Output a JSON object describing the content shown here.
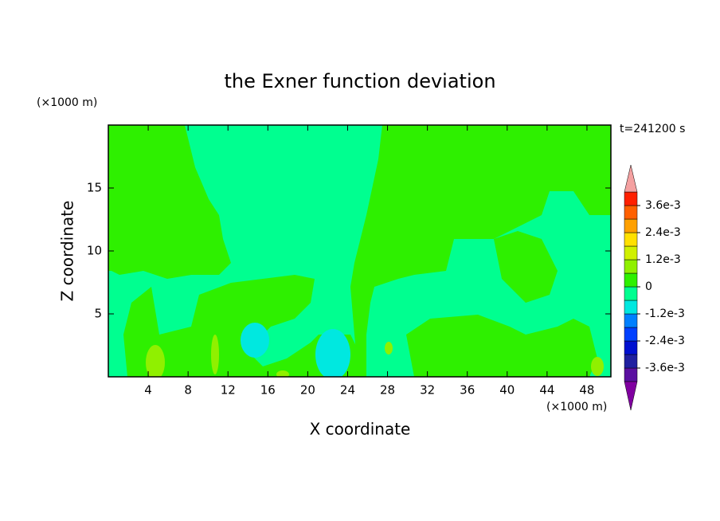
{
  "chart_data": {
    "type": "contour",
    "title": "the Exner function deviation",
    "x_label": "X coordinate",
    "y_label": "Z coordinate",
    "x_unit": "(×1000 m)",
    "y_unit": "(×1000 m)",
    "annotation": "t=241200 s",
    "xlim": [
      0,
      50.4
    ],
    "ylim": [
      0,
      20
    ],
    "xticks": [
      4,
      8,
      12,
      16,
      20,
      24,
      28,
      32,
      36,
      40,
      44,
      48
    ],
    "yticks": [
      5,
      10,
      15
    ],
    "colorbar": {
      "levels": [
        -0.0042,
        -0.0036,
        -0.003,
        -0.0024,
        -0.0018,
        -0.0012,
        -0.0006,
        0,
        0.0006,
        0.0012,
        0.0018,
        0.0024,
        0.003,
        0.0036,
        0.0042
      ],
      "colors": [
        "#5a10a0",
        "#2020a0",
        "#0010d0",
        "#0040ff",
        "#0080ff",
        "#00e8e0",
        "#00ff90",
        "#2ef000",
        "#90f000",
        "#d0f000",
        "#ffe000",
        "#ffa000",
        "#ff6000",
        "#ff2000"
      ],
      "extend_colors": [
        "#8000a0",
        "#f4a0a0"
      ],
      "ticks": [
        {
          "value": 0.0036,
          "label": "3.6e-3"
        },
        {
          "value": 0.0024,
          "label": "2.4e-3"
        },
        {
          "value": 0.0012,
          "label": "1.2e-3"
        },
        0,
        {
          "value": -0.0012,
          "label": "-1.2e-3"
        },
        {
          "value": -0.0024,
          "label": "-2.4e-3"
        },
        {
          "value": -0.0036,
          "label": "-3.6e-3"
        }
      ]
    }
  }
}
